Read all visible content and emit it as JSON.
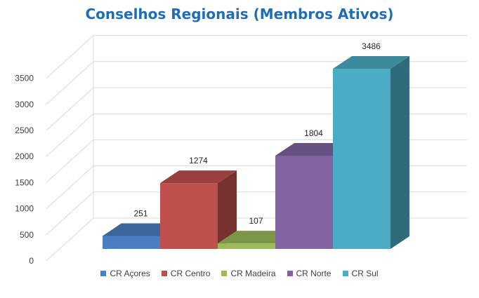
{
  "chart_data": {
    "type": "bar",
    "title": "Conselhos Regionais (Membros Ativos)",
    "xlabel": "",
    "ylabel": "",
    "categories": [
      "CR Açores",
      "CR Centro",
      "CR Madeira",
      "CR Norte",
      "CR Sul"
    ],
    "values": [
      251,
      1274,
      107,
      1804,
      3486
    ],
    "colors": [
      "#4A7EC2",
      "#C0504D",
      "#9BBB59",
      "#8064A2",
      "#4BACC6"
    ],
    "ylim": [
      0,
      3500
    ],
    "yticks": [
      "0",
      "500",
      "1000",
      "1500",
      "2000",
      "2500",
      "3000",
      "3500"
    ],
    "grid": true,
    "legend_position": "bottom",
    "style": "3d-column"
  }
}
